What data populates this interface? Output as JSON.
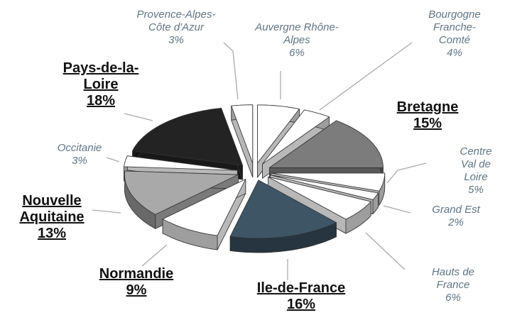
{
  "chart_data": {
    "type": "pie",
    "categories": [
      "Auvergne  Rhône-\nAlpes",
      "Bourgogne\nFranche-Comté",
      "Bretagne",
      "Centre Val de\nLoire",
      "Grand Est",
      "Hauts de France",
      "Ile-de-France",
      "Normandie",
      "Nouvelle\nAquitaine",
      "Occitanie",
      "Pays-de-la-\nLoire",
      "Provence-Alpes-\nCôte d'Azur"
    ],
    "values": [
      6,
      4,
      15,
      5,
      2,
      6,
      16,
      9,
      13,
      3,
      18,
      3
    ],
    "value_labels": [
      "6%",
      "4%",
      "15%",
      "5%",
      "2%",
      "6%",
      "16%",
      "9%",
      "13%",
      "3%",
      "18%",
      "3%"
    ],
    "colors": [
      "#ffffff",
      "#ffffff",
      "#7c7c7c",
      "#ffffff",
      "#ffffff",
      "#ffffff",
      "#3e5566",
      "#ffffff",
      "#a9a9a9",
      "#ffffff",
      "#232323",
      "#ffffff"
    ]
  }
}
